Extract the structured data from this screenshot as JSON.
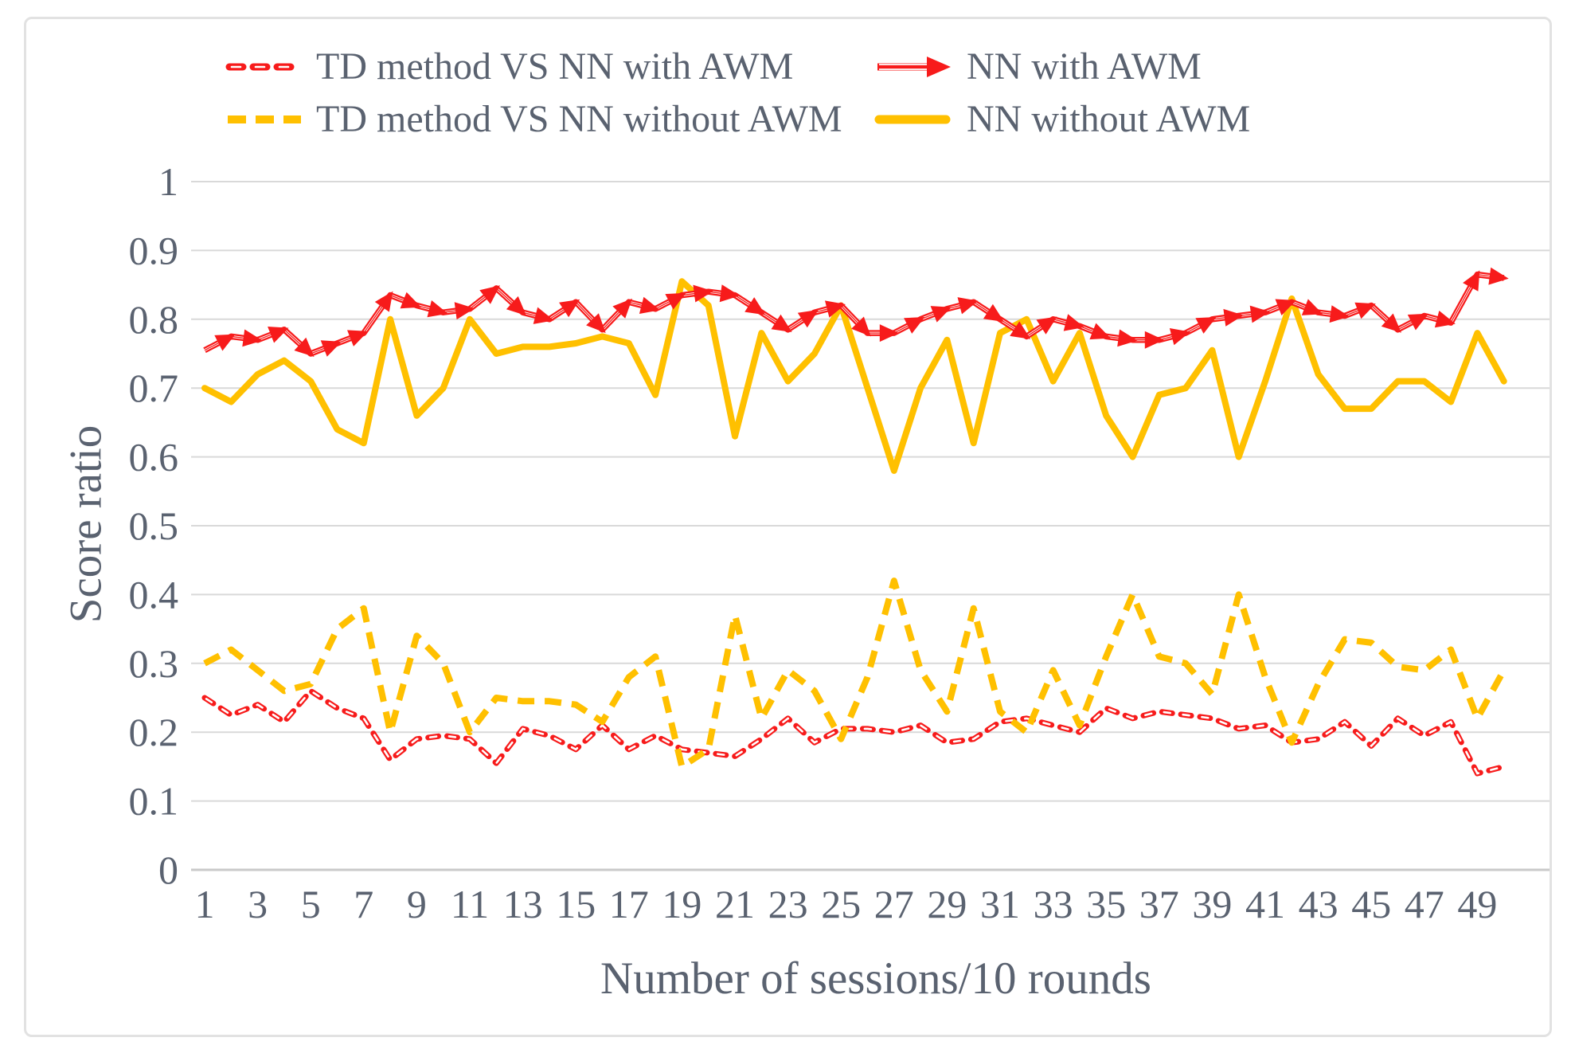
{
  "legend": {
    "position": "top",
    "items": [
      {
        "id": "td-vs-nn-with-awm",
        "label": "TD method VS NN with AWM",
        "color": "#f71b1b",
        "style": "dashed-striped"
      },
      {
        "id": "td-vs-nn-without-awm",
        "label": "TD method VS NN without AWM",
        "color": "#ffc000",
        "style": "dashed"
      },
      {
        "id": "nn-with-awm",
        "label": "NN with AWM",
        "color": "#f71b1b",
        "style": "arrow"
      },
      {
        "id": "nn-without-awm",
        "label": "NN without AWM",
        "color": "#ffc000",
        "style": "solid"
      }
    ]
  },
  "chart_data": {
    "type": "line",
    "title": "",
    "xlabel": "Number of sessions/10 rounds",
    "ylabel": "Score ratio",
    "x": [
      1,
      2,
      3,
      4,
      5,
      6,
      7,
      8,
      9,
      10,
      11,
      12,
      13,
      14,
      15,
      16,
      17,
      18,
      19,
      20,
      21,
      22,
      23,
      24,
      25,
      26,
      27,
      28,
      29,
      30,
      31,
      32,
      33,
      34,
      35,
      36,
      37,
      38,
      39,
      40,
      41,
      42,
      43,
      44,
      45,
      46,
      47,
      48,
      49,
      50
    ],
    "x_tick_labels": [
      "1",
      "3",
      "5",
      "7",
      "9",
      "11",
      "13",
      "15",
      "17",
      "19",
      "21",
      "23",
      "25",
      "27",
      "29",
      "31",
      "33",
      "35",
      "37",
      "39",
      "41",
      "43",
      "45",
      "47",
      "49"
    ],
    "ylim": [
      0,
      1
    ],
    "y_ticks": [
      {
        "v": 1.0,
        "label": "1"
      },
      {
        "v": 0.9,
        "label": "0.9"
      },
      {
        "v": 0.8,
        "label": "0.8"
      },
      {
        "v": 0.7,
        "label": "0.7"
      },
      {
        "v": 0.6,
        "label": "0.6"
      },
      {
        "v": 0.5,
        "label": "0.5"
      },
      {
        "v": 0.4,
        "label": "0.4"
      },
      {
        "v": 0.3,
        "label": "0.3"
      },
      {
        "v": 0.2,
        "label": "0.2"
      },
      {
        "v": 0.1,
        "label": "0.1"
      },
      {
        "v": 0.0,
        "label": "0"
      }
    ],
    "grid": "horizontal",
    "legend_position": "top",
    "colors": {
      "red": "#f71b1b",
      "yellow": "#ffc000",
      "grid": "#d9d9d9",
      "axis": "#c9c9c9",
      "text": "#5a6270"
    },
    "series": [
      {
        "name": "TD method VS NN with AWM",
        "color": "#f71b1b",
        "style": "dashed",
        "stripe": true,
        "draw_order": 1,
        "values": [
          0.25,
          0.225,
          0.24,
          0.215,
          0.26,
          0.235,
          0.22,
          0.16,
          0.19,
          0.195,
          0.19,
          0.155,
          0.205,
          0.195,
          0.175,
          0.21,
          0.175,
          0.195,
          0.175,
          0.17,
          0.165,
          0.19,
          0.22,
          0.185,
          0.205,
          0.205,
          0.2,
          0.21,
          0.185,
          0.19,
          0.215,
          0.22,
          0.21,
          0.2,
          0.235,
          0.22,
          0.23,
          0.225,
          0.22,
          0.205,
          0.21,
          0.185,
          0.19,
          0.215,
          0.18,
          0.22,
          0.195,
          0.215,
          0.14,
          0.15
        ]
      },
      {
        "name": "TD method VS NN without AWM",
        "color": "#ffc000",
        "style": "dashed",
        "stripe": false,
        "draw_order": 2,
        "values": [
          0.3,
          0.32,
          0.29,
          0.26,
          0.27,
          0.35,
          0.38,
          0.2,
          0.34,
          0.3,
          0.2,
          0.25,
          0.245,
          0.245,
          0.24,
          0.215,
          0.28,
          0.31,
          0.15,
          0.175,
          0.37,
          0.22,
          0.29,
          0.26,
          0.19,
          0.28,
          0.42,
          0.29,
          0.23,
          0.38,
          0.23,
          0.2,
          0.29,
          0.21,
          0.31,
          0.4,
          0.31,
          0.3,
          0.255,
          0.4,
          0.28,
          0.185,
          0.27,
          0.335,
          0.33,
          0.295,
          0.29,
          0.32,
          0.22,
          0.29
        ]
      },
      {
        "name": "NN without AWM",
        "color": "#ffc000",
        "style": "solid",
        "stripe": false,
        "draw_order": 3,
        "values": [
          0.7,
          0.68,
          0.72,
          0.74,
          0.71,
          0.64,
          0.62,
          0.8,
          0.66,
          0.7,
          0.8,
          0.75,
          0.76,
          0.76,
          0.765,
          0.775,
          0.765,
          0.69,
          0.855,
          0.82,
          0.63,
          0.78,
          0.71,
          0.75,
          0.82,
          0.7,
          0.58,
          0.7,
          0.77,
          0.62,
          0.78,
          0.8,
          0.71,
          0.78,
          0.66,
          0.6,
          0.69,
          0.7,
          0.755,
          0.6,
          0.71,
          0.83,
          0.72,
          0.67,
          0.67,
          0.71,
          0.71,
          0.68,
          0.78,
          0.71
        ]
      },
      {
        "name": "NN with AWM",
        "color": "#f71b1b",
        "style": "arrow-line",
        "stripe": true,
        "draw_order": 4,
        "values": [
          0.755,
          0.775,
          0.77,
          0.785,
          0.75,
          0.765,
          0.78,
          0.835,
          0.82,
          0.81,
          0.815,
          0.845,
          0.81,
          0.8,
          0.825,
          0.785,
          0.825,
          0.815,
          0.835,
          0.84,
          0.835,
          0.81,
          0.785,
          0.81,
          0.82,
          0.78,
          0.78,
          0.8,
          0.815,
          0.825,
          0.8,
          0.775,
          0.8,
          0.79,
          0.775,
          0.77,
          0.77,
          0.78,
          0.8,
          0.805,
          0.81,
          0.825,
          0.81,
          0.805,
          0.82,
          0.785,
          0.805,
          0.795,
          0.865,
          0.86
        ]
      }
    ]
  }
}
